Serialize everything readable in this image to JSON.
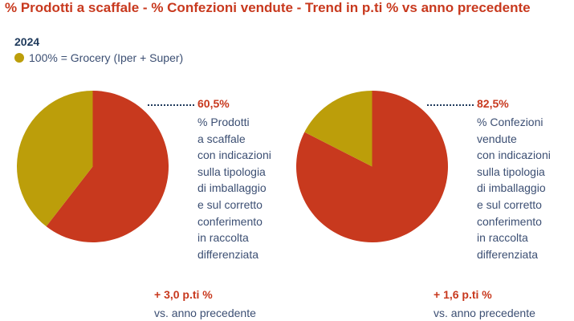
{
  "title": "% Prodotti a scaffale - % Confezioni vendute - Trend in p.ti % vs anno precedente",
  "year": "2024",
  "legend": {
    "label": "100% = Grocery (Iper + Super)",
    "color": "#bc9e0a"
  },
  "colors": {
    "primary": "#c8391e",
    "secondary": "#bc9e0a",
    "text": "#3c4f73"
  },
  "chart_data": [
    {
      "type": "pie",
      "slices": [
        {
          "value": 60.5,
          "color": "#c8391e"
        },
        {
          "value": 39.5,
          "color": "#bc9e0a"
        }
      ],
      "label": "60,5%",
      "description": [
        "% Prodotti",
        "a scaffale",
        "con indicazioni",
        "sulla tipologia",
        "di imballaggio",
        "e sul corretto",
        "conferimento",
        "in raccolta",
        "differenziata"
      ],
      "trend": "+ 3,0 p.ti %",
      "trend_sub": "vs. anno precedente"
    },
    {
      "type": "pie",
      "slices": [
        {
          "value": 82.5,
          "color": "#c8391e"
        },
        {
          "value": 17.5,
          "color": "#bc9e0a"
        }
      ],
      "label": "82,5%",
      "description": [
        "% Confezioni",
        "vendute",
        "con indicazioni",
        "sulla tipologia",
        "di imballaggio",
        "e sul corretto",
        "conferimento",
        "in raccolta",
        "differenziata"
      ],
      "trend": "+ 1,6 p.ti %",
      "trend_sub": "vs. anno precedente"
    }
  ]
}
